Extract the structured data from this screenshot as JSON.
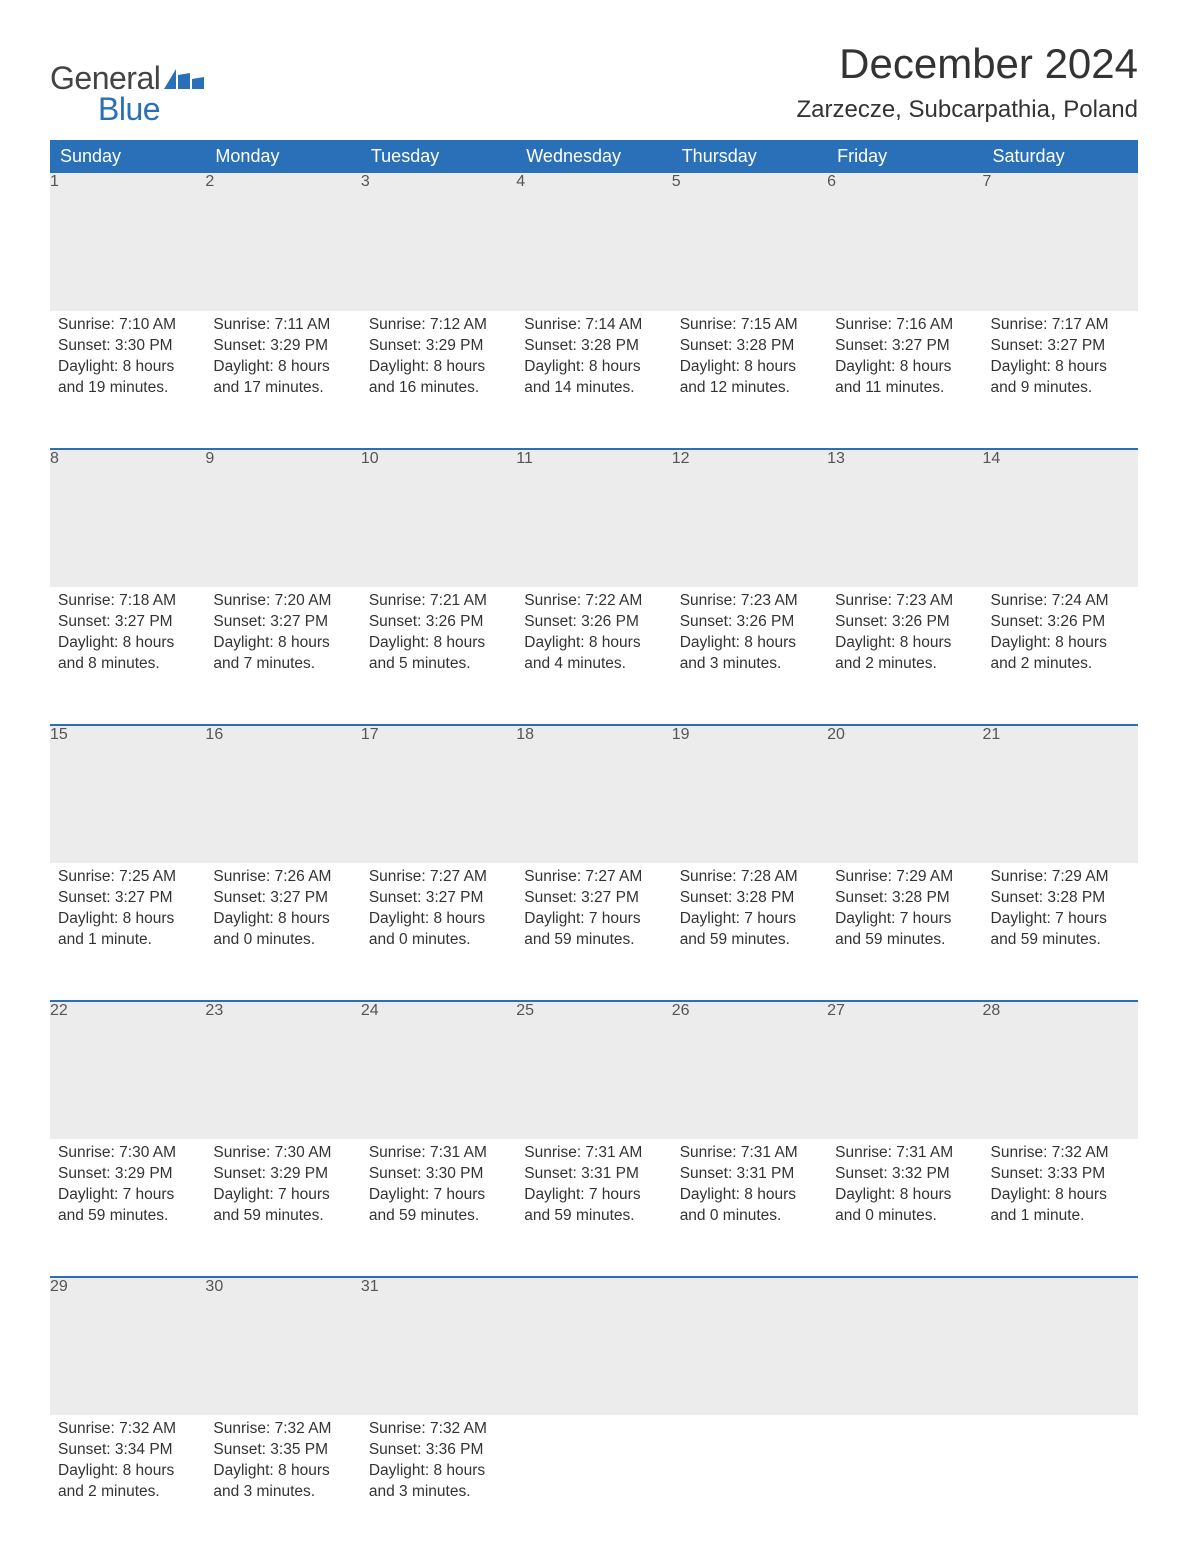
{
  "brand": {
    "word1": "General",
    "word2": "Blue",
    "text_color": "#444444",
    "accent_color": "#2a70b8"
  },
  "title": "December 2024",
  "location": "Zarzecze, Subcarpathia, Poland",
  "header_bg": "#2a70b8",
  "header_text_color": "#ffffff",
  "daynum_bg": "#ececec",
  "body_bg": "#ffffff",
  "title_fontsize": 42,
  "location_fontsize": 24,
  "day_header_fontsize": 18,
  "body_fontsize": 15.5,
  "columns": [
    "Sunday",
    "Monday",
    "Tuesday",
    "Wednesday",
    "Thursday",
    "Friday",
    "Saturday"
  ],
  "weeks": [
    [
      {
        "n": "1",
        "sunrise": "Sunrise: 7:10 AM",
        "sunset": "Sunset: 3:30 PM",
        "d1": "Daylight: 8 hours",
        "d2": "and 19 minutes."
      },
      {
        "n": "2",
        "sunrise": "Sunrise: 7:11 AM",
        "sunset": "Sunset: 3:29 PM",
        "d1": "Daylight: 8 hours",
        "d2": "and 17 minutes."
      },
      {
        "n": "3",
        "sunrise": "Sunrise: 7:12 AM",
        "sunset": "Sunset: 3:29 PM",
        "d1": "Daylight: 8 hours",
        "d2": "and 16 minutes."
      },
      {
        "n": "4",
        "sunrise": "Sunrise: 7:14 AM",
        "sunset": "Sunset: 3:28 PM",
        "d1": "Daylight: 8 hours",
        "d2": "and 14 minutes."
      },
      {
        "n": "5",
        "sunrise": "Sunrise: 7:15 AM",
        "sunset": "Sunset: 3:28 PM",
        "d1": "Daylight: 8 hours",
        "d2": "and 12 minutes."
      },
      {
        "n": "6",
        "sunrise": "Sunrise: 7:16 AM",
        "sunset": "Sunset: 3:27 PM",
        "d1": "Daylight: 8 hours",
        "d2": "and 11 minutes."
      },
      {
        "n": "7",
        "sunrise": "Sunrise: 7:17 AM",
        "sunset": "Sunset: 3:27 PM",
        "d1": "Daylight: 8 hours",
        "d2": "and 9 minutes."
      }
    ],
    [
      {
        "n": "8",
        "sunrise": "Sunrise: 7:18 AM",
        "sunset": "Sunset: 3:27 PM",
        "d1": "Daylight: 8 hours",
        "d2": "and 8 minutes."
      },
      {
        "n": "9",
        "sunrise": "Sunrise: 7:20 AM",
        "sunset": "Sunset: 3:27 PM",
        "d1": "Daylight: 8 hours",
        "d2": "and 7 minutes."
      },
      {
        "n": "10",
        "sunrise": "Sunrise: 7:21 AM",
        "sunset": "Sunset: 3:26 PM",
        "d1": "Daylight: 8 hours",
        "d2": "and 5 minutes."
      },
      {
        "n": "11",
        "sunrise": "Sunrise: 7:22 AM",
        "sunset": "Sunset: 3:26 PM",
        "d1": "Daylight: 8 hours",
        "d2": "and 4 minutes."
      },
      {
        "n": "12",
        "sunrise": "Sunrise: 7:23 AM",
        "sunset": "Sunset: 3:26 PM",
        "d1": "Daylight: 8 hours",
        "d2": "and 3 minutes."
      },
      {
        "n": "13",
        "sunrise": "Sunrise: 7:23 AM",
        "sunset": "Sunset: 3:26 PM",
        "d1": "Daylight: 8 hours",
        "d2": "and 2 minutes."
      },
      {
        "n": "14",
        "sunrise": "Sunrise: 7:24 AM",
        "sunset": "Sunset: 3:26 PM",
        "d1": "Daylight: 8 hours",
        "d2": "and 2 minutes."
      }
    ],
    [
      {
        "n": "15",
        "sunrise": "Sunrise: 7:25 AM",
        "sunset": "Sunset: 3:27 PM",
        "d1": "Daylight: 8 hours",
        "d2": "and 1 minute."
      },
      {
        "n": "16",
        "sunrise": "Sunrise: 7:26 AM",
        "sunset": "Sunset: 3:27 PM",
        "d1": "Daylight: 8 hours",
        "d2": "and 0 minutes."
      },
      {
        "n": "17",
        "sunrise": "Sunrise: 7:27 AM",
        "sunset": "Sunset: 3:27 PM",
        "d1": "Daylight: 8 hours",
        "d2": "and 0 minutes."
      },
      {
        "n": "18",
        "sunrise": "Sunrise: 7:27 AM",
        "sunset": "Sunset: 3:27 PM",
        "d1": "Daylight: 7 hours",
        "d2": "and 59 minutes."
      },
      {
        "n": "19",
        "sunrise": "Sunrise: 7:28 AM",
        "sunset": "Sunset: 3:28 PM",
        "d1": "Daylight: 7 hours",
        "d2": "and 59 minutes."
      },
      {
        "n": "20",
        "sunrise": "Sunrise: 7:29 AM",
        "sunset": "Sunset: 3:28 PM",
        "d1": "Daylight: 7 hours",
        "d2": "and 59 minutes."
      },
      {
        "n": "21",
        "sunrise": "Sunrise: 7:29 AM",
        "sunset": "Sunset: 3:28 PM",
        "d1": "Daylight: 7 hours",
        "d2": "and 59 minutes."
      }
    ],
    [
      {
        "n": "22",
        "sunrise": "Sunrise: 7:30 AM",
        "sunset": "Sunset: 3:29 PM",
        "d1": "Daylight: 7 hours",
        "d2": "and 59 minutes."
      },
      {
        "n": "23",
        "sunrise": "Sunrise: 7:30 AM",
        "sunset": "Sunset: 3:29 PM",
        "d1": "Daylight: 7 hours",
        "d2": "and 59 minutes."
      },
      {
        "n": "24",
        "sunrise": "Sunrise: 7:31 AM",
        "sunset": "Sunset: 3:30 PM",
        "d1": "Daylight: 7 hours",
        "d2": "and 59 minutes."
      },
      {
        "n": "25",
        "sunrise": "Sunrise: 7:31 AM",
        "sunset": "Sunset: 3:31 PM",
        "d1": "Daylight: 7 hours",
        "d2": "and 59 minutes."
      },
      {
        "n": "26",
        "sunrise": "Sunrise: 7:31 AM",
        "sunset": "Sunset: 3:31 PM",
        "d1": "Daylight: 8 hours",
        "d2": "and 0 minutes."
      },
      {
        "n": "27",
        "sunrise": "Sunrise: 7:31 AM",
        "sunset": "Sunset: 3:32 PM",
        "d1": "Daylight: 8 hours",
        "d2": "and 0 minutes."
      },
      {
        "n": "28",
        "sunrise": "Sunrise: 7:32 AM",
        "sunset": "Sunset: 3:33 PM",
        "d1": "Daylight: 8 hours",
        "d2": "and 1 minute."
      }
    ],
    [
      {
        "n": "29",
        "sunrise": "Sunrise: 7:32 AM",
        "sunset": "Sunset: 3:34 PM",
        "d1": "Daylight: 8 hours",
        "d2": "and 2 minutes."
      },
      {
        "n": "30",
        "sunrise": "Sunrise: 7:32 AM",
        "sunset": "Sunset: 3:35 PM",
        "d1": "Daylight: 8 hours",
        "d2": "and 3 minutes."
      },
      {
        "n": "31",
        "sunrise": "Sunrise: 7:32 AM",
        "sunset": "Sunset: 3:36 PM",
        "d1": "Daylight: 8 hours",
        "d2": "and 3 minutes."
      },
      null,
      null,
      null,
      null
    ]
  ]
}
